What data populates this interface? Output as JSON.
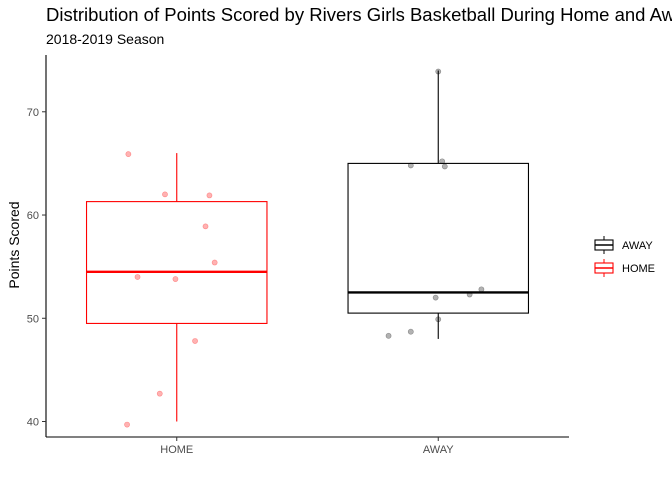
{
  "chart_data": {
    "type": "boxplot",
    "title": "Distribution of Points Scored by Rivers Girls Basketball During Home and Away",
    "subtitle": "2018-2019 Season",
    "xlabel": "",
    "ylabel": "Points Scored",
    "categories": [
      "HOME",
      "AWAY"
    ],
    "y_ticks": [
      40,
      50,
      60,
      70
    ],
    "ylim": [
      38.5,
      75.5
    ],
    "grid": false,
    "legend_position": "right",
    "legend": [
      {
        "label": "AWAY",
        "color": "#000000"
      },
      {
        "label": "HOME",
        "color": "#ff0000"
      }
    ],
    "series": [
      {
        "category": "HOME",
        "color": "#ff0000",
        "box": {
          "min": 40,
          "q1": 49.5,
          "median": 54.5,
          "q3": 61.3,
          "max": 66
        },
        "points": [
          {
            "x": -0.37,
            "y": 65.9
          },
          {
            "x": -0.3,
            "y": 54.0
          },
          {
            "x": -0.13,
            "y": 42.7
          },
          {
            "x": -0.09,
            "y": 62.0
          },
          {
            "x": -0.01,
            "y": 53.8
          },
          {
            "x": 0.14,
            "y": 47.8
          },
          {
            "x": 0.22,
            "y": 58.9
          },
          {
            "x": 0.25,
            "y": 61.9
          },
          {
            "x": 0.29,
            "y": 55.4
          },
          {
            "x": -0.38,
            "y": 39.7
          }
        ]
      },
      {
        "category": "AWAY",
        "color": "#000000",
        "box": {
          "min": 48,
          "q1": 50.5,
          "median": 52.5,
          "q3": 65,
          "max": 74
        },
        "points": [
          {
            "x": -0.38,
            "y": 48.3
          },
          {
            "x": -0.21,
            "y": 48.7
          },
          {
            "x": -0.21,
            "y": 64.8
          },
          {
            "x": -0.02,
            "y": 52.0
          },
          {
            "x": 0.0,
            "y": 73.9
          },
          {
            "x": 0.0,
            "y": 49.9
          },
          {
            "x": 0.03,
            "y": 65.2
          },
          {
            "x": 0.05,
            "y": 64.7
          },
          {
            "x": 0.24,
            "y": 52.3
          },
          {
            "x": 0.33,
            "y": 52.8
          }
        ]
      }
    ]
  }
}
